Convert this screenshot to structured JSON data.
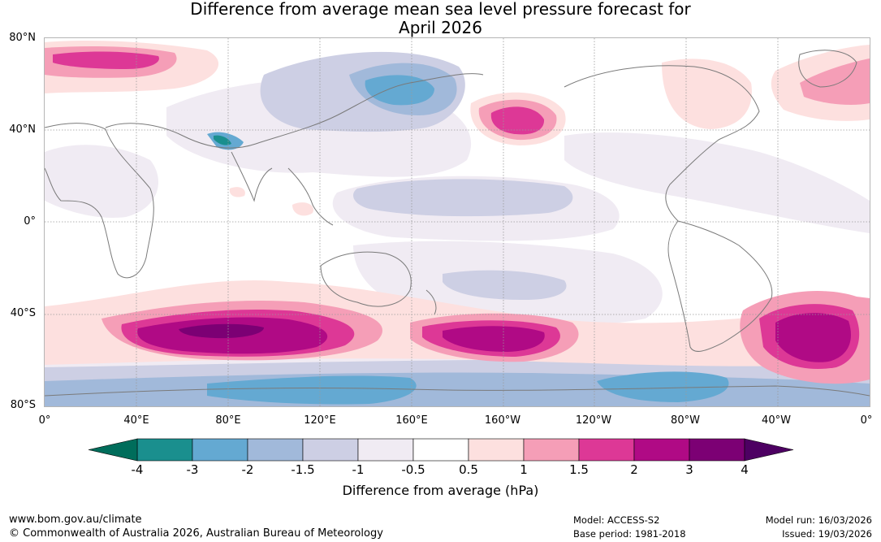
{
  "title": {
    "line1": "Difference from average mean sea level pressure forecast for",
    "line2": "April 2026"
  },
  "map": {
    "lat_labels": [
      "80°N",
      "40°N",
      "0°",
      "40°S",
      "80°S"
    ],
    "lon_labels": [
      "0°",
      "40°E",
      "80°E",
      "120°E",
      "160°E",
      "160°W",
      "120°W",
      "80°W",
      "40°W",
      "0°"
    ]
  },
  "colorbar": {
    "ticks": [
      "-4",
      "-3",
      "-2",
      "-1.5",
      "-1",
      "-0.5",
      "0.5",
      "1",
      "1.5",
      "2",
      "3",
      "4"
    ],
    "colors": [
      "#1a8f8e",
      "#64a9d2",
      "#a1b9da",
      "#cdcfe4",
      "#f0ebf3",
      "#ffffff",
      "#fde0df",
      "#f59eb7",
      "#dd3896",
      "#b00a85",
      "#7c0074"
    ],
    "extend_low_color": "#006d5b",
    "extend_high_color": "#4d0062",
    "label": "Difference from average (hPa)"
  },
  "footer": {
    "website": "www.bom.gov.au/climate",
    "copyright": "© Commonwealth of Australia 2026, Australian Bureau of Meteorology",
    "model": "Model: ACCESS-S2",
    "base_period": "Base period: 1981-2018",
    "model_run": "Model run: 16/03/2026",
    "issued": "Issued: 19/03/2026"
  }
}
